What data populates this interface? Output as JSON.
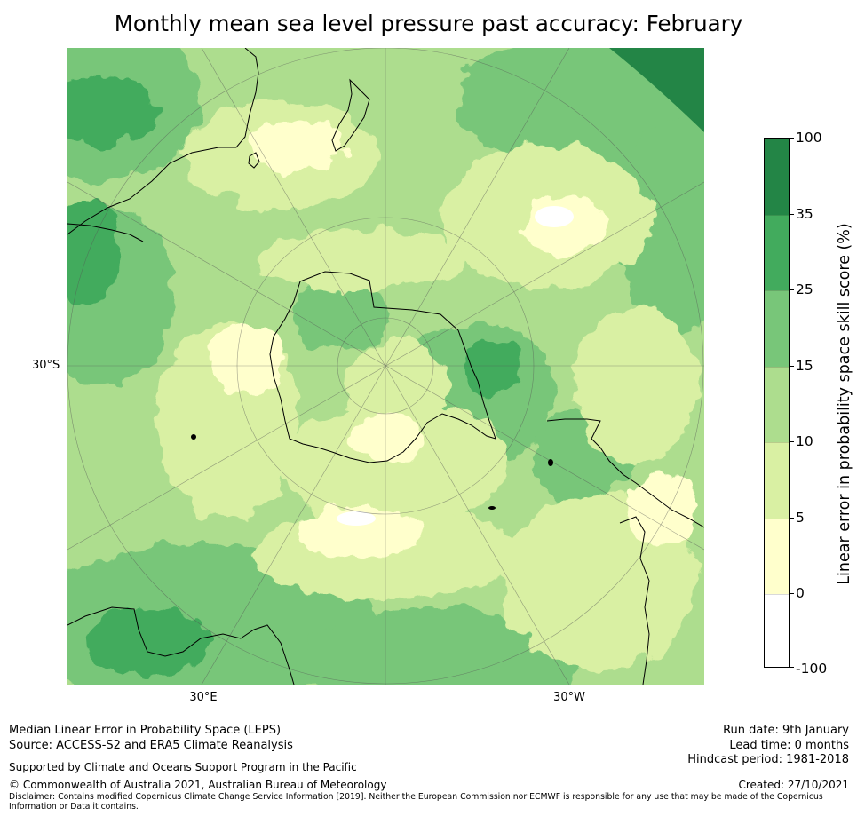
{
  "title": "Monthly mean sea level pressure past accuracy: February",
  "map": {
    "projection": "South polar stereographic",
    "lat_label": "30°S",
    "lon_labels": [
      "30°E",
      "30°W"
    ]
  },
  "colorbar": {
    "label": "Linear error in probability space skill score (%)",
    "ticks": [
      "100",
      "35",
      "25",
      "15",
      "10",
      "5",
      "0",
      "-100"
    ],
    "levels": [
      {
        "range": "35 to 100",
        "color": "#238546"
      },
      {
        "range": "25 to 35",
        "color": "#42ab5d"
      },
      {
        "range": "15 to 25",
        "color": "#78c679"
      },
      {
        "range": "10 to 15",
        "color": "#addd8e"
      },
      {
        "range": "5 to 10",
        "color": "#d9f0a3"
      },
      {
        "range": "0 to 5",
        "color": "#ffffcc"
      },
      {
        "range": "-100 to 0",
        "color": "#ffffff"
      }
    ]
  },
  "footer": {
    "line1": "Median Linear Error in Probability Space (LEPS)",
    "line2": "Source: ACCESS-S2 and ERA5 Climate Reanalysis",
    "line3": "Supported by Climate and Oceans Support Program in the Pacific",
    "line4": "© Commonwealth of Australia 2021, Australian Bureau of Meteorology",
    "disclaimer": "Disclaimer: Contains modified Copernicus Climate Change Service Information [2019]. Neither the European Commission nor ECMWF is responsible for any use that may be made of the Copernicus Information or Data it contains.",
    "run_date": "Run date: 9th January",
    "lead_time": "Lead time: 0 months",
    "hindcast": "Hindcast period: 1981-2018",
    "created": "Created: 27/10/2021"
  }
}
